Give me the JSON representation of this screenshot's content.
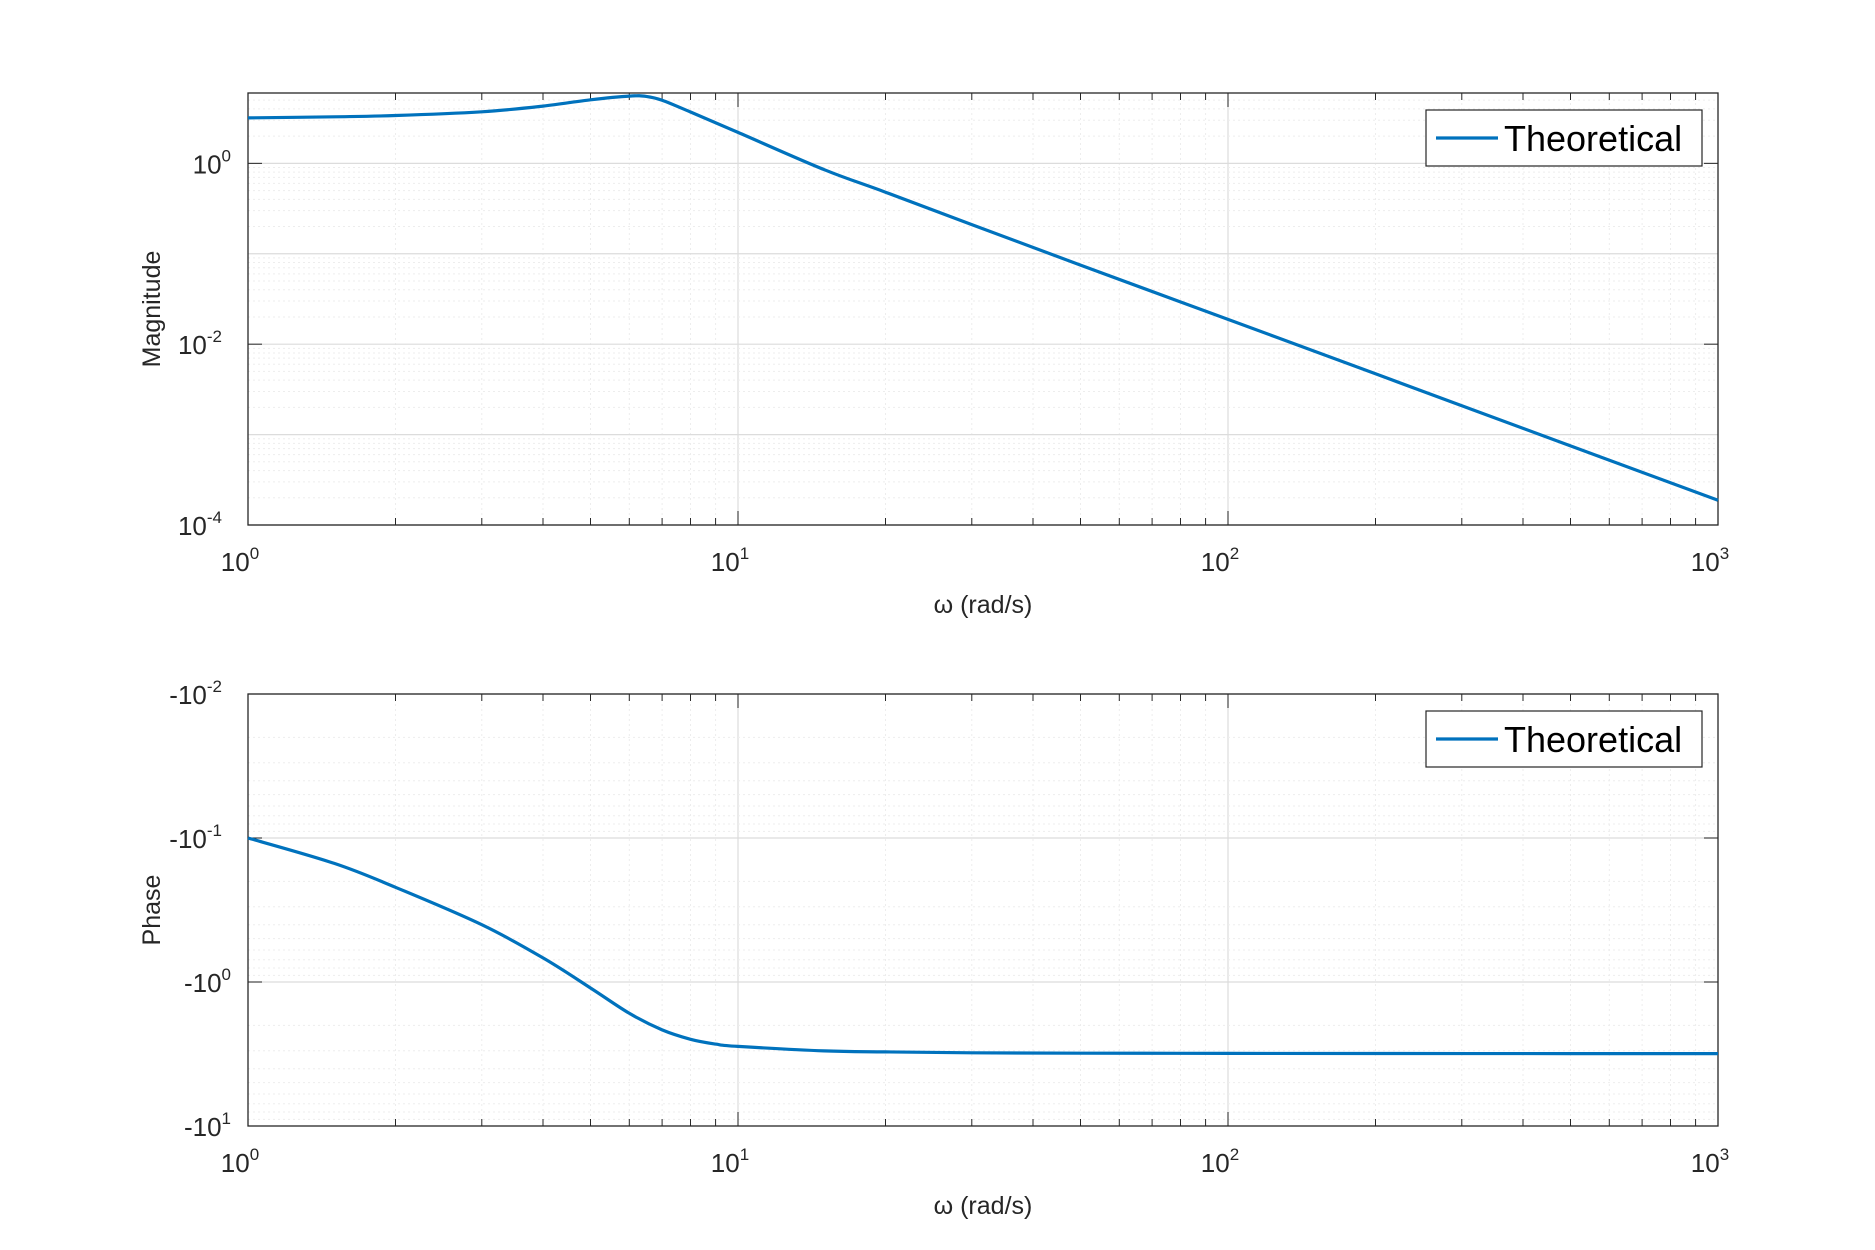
{
  "colors": {
    "line": "#0072BD",
    "axes": "#262626",
    "grid_major": "#dcdcdc",
    "grid_minor": "#ededed",
    "background": "#ffffff"
  },
  "chart_data": [
    {
      "type": "line",
      "xscale": "log",
      "yscale": "log",
      "xlabel": "ω (rad/s)",
      "ylabel": "Magnitude",
      "xlim": [
        1,
        1000
      ],
      "ylim": [
        0.0001,
        6
      ],
      "grid": true,
      "legend_position": "top-right",
      "x_ticks": [
        {
          "base": "10",
          "exp": "0"
        },
        {
          "base": "10",
          "exp": "1"
        },
        {
          "base": "10",
          "exp": "2"
        },
        {
          "base": "10",
          "exp": "3"
        }
      ],
      "y_ticks": [
        {
          "value": 1,
          "base": "10",
          "exp": "0"
        },
        {
          "value": 0.01,
          "base": "10",
          "exp": "-2"
        },
        {
          "value": 0.0001,
          "base": "10",
          "exp": "-4"
        }
      ],
      "series": [
        {
          "name": "Theoretical",
          "x": [
            1,
            1.5,
            2,
            3,
            4,
            5,
            6,
            6.5,
            7,
            8,
            10,
            15,
            20,
            30,
            50,
            100,
            200,
            500,
            1000
          ],
          "y": [
            3.18,
            3.27,
            3.38,
            3.72,
            4.3,
            5.05,
            5.55,
            5.5,
            5.0,
            3.7,
            2.2,
            0.85,
            0.48,
            0.21,
            0.075,
            0.0188,
            0.0047,
            0.00075,
            0.000188
          ]
        }
      ]
    },
    {
      "type": "line",
      "xscale": "log",
      "yscale": "log",
      "xlabel": "ω (rad/s)",
      "ylabel": "Phase",
      "xlim": [
        1,
        1000
      ],
      "ylim": [
        -10,
        -0.01
      ],
      "grid": true,
      "legend_position": "top-right",
      "x_ticks": [
        {
          "base": "10",
          "exp": "0"
        },
        {
          "base": "10",
          "exp": "1"
        },
        {
          "base": "10",
          "exp": "2"
        },
        {
          "base": "10",
          "exp": "3"
        }
      ],
      "y_ticks": [
        {
          "value": -0.01,
          "base": "-10",
          "exp": "-2"
        },
        {
          "value": -0.1,
          "base": "-10",
          "exp": "-1"
        },
        {
          "value": -1,
          "base": "-10",
          "exp": "0"
        },
        {
          "value": -10,
          "base": "-10",
          "exp": "1"
        }
      ],
      "series": [
        {
          "name": "Theoretical",
          "x": [
            1,
            1.5,
            2,
            3,
            4,
            5,
            6,
            7,
            8,
            9,
            10,
            15,
            20,
            30,
            50,
            100,
            200,
            500,
            1000
          ],
          "y": [
            -0.1,
            -0.15,
            -0.22,
            -0.4,
            -0.68,
            -1.1,
            -1.65,
            -2.15,
            -2.5,
            -2.7,
            -2.8,
            -3.01,
            -3.06,
            -3.1,
            -3.12,
            -3.13,
            -3.138,
            -3.14,
            -3.141
          ]
        }
      ]
    }
  ]
}
